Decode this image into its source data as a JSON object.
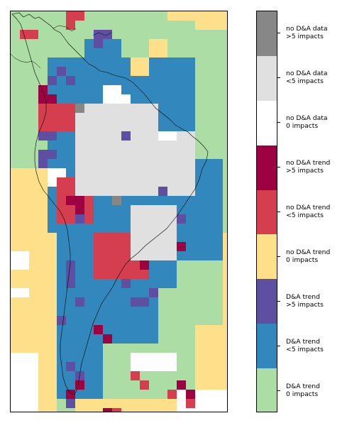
{
  "colorbar": {
    "categories": [
      {
        "label": "no D&A data\n>5 impacts",
        "color": "#878787"
      },
      {
        "label": "no D&A data\n<5 impacts",
        "color": "#e0e0e0"
      },
      {
        "label": "no D&A data\n0 impacts",
        "color": "#ffffff"
      },
      {
        "label": "no D&A trend\n>5 impacts",
        "color": "#9e0142"
      },
      {
        "label": "no D&A trend\n<5 impacts",
        "color": "#d53e4f"
      },
      {
        "label": "no D&A trend\n0 impacts",
        "color": "#fee08b"
      },
      {
        "label": "D&A trend\n>5 impacts",
        "color": "#5e4fa2"
      },
      {
        "label": "D&A trend\n<5 impacts",
        "color": "#3288bd"
      },
      {
        "label": "D&A trend\n0 impacts",
        "color": "#abdda4"
      }
    ]
  },
  "map": {
    "region": "South America",
    "legend_placement": "right"
  }
}
